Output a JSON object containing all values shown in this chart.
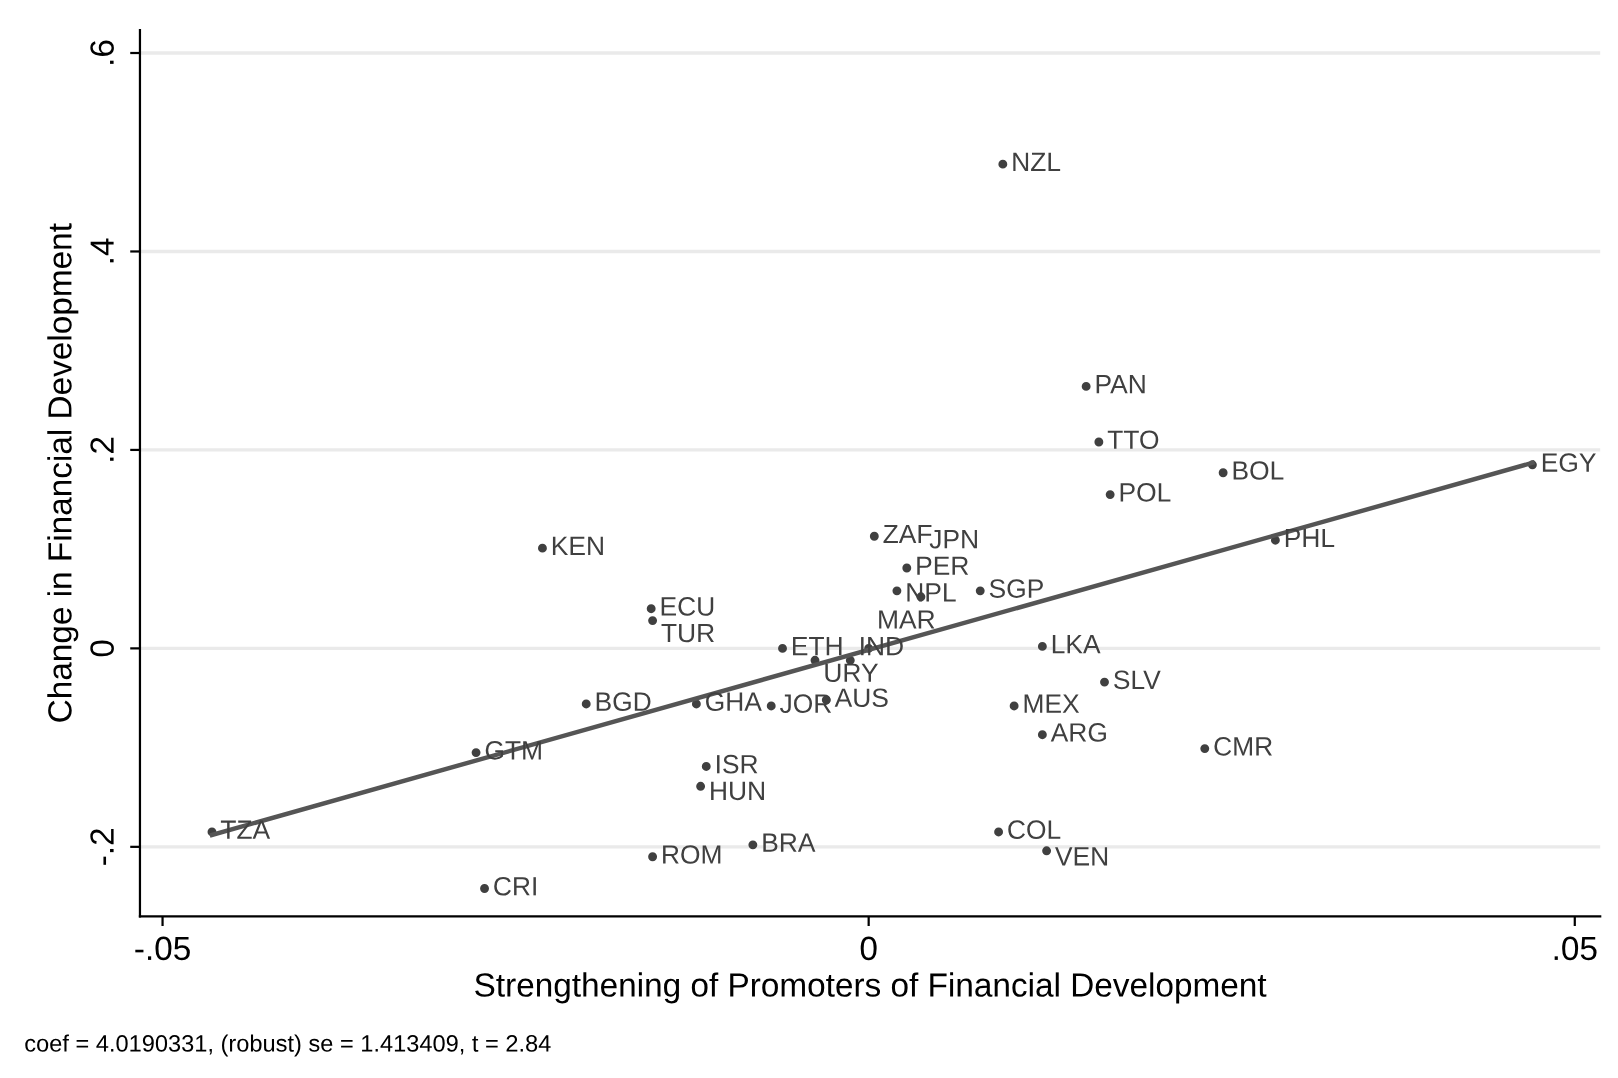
{
  "chart_data": {
    "type": "scatter",
    "xlabel": "Strengthening of Promoters of Financial Development",
    "ylabel": "Change in Financial Development",
    "annotations": [
      "coef = 4.0190331, (robust) se = 1.413409, t = 2.84"
    ],
    "xlim": [
      -0.0516,
      0.0518
    ],
    "xticks": [
      {
        "value": -0.05,
        "label": "-.05"
      },
      0,
      {
        "value": 0.05,
        "label": ".05"
      }
    ],
    "ylim": [
      -0.27,
      0.623
    ],
    "yticks": [
      {
        "value": -0.2,
        "label": "-.2"
      },
      0,
      {
        "value": 0.2,
        "label": ".2"
      },
      {
        "value": 0.4,
        "label": ".4"
      },
      {
        "value": 0.6,
        "label": ".6"
      }
    ],
    "grid": "y",
    "legend": false,
    "series": [
      {
        "color": "#404040",
        "marker": "circle",
        "x": [
          -0.0465,
          -0.0272,
          -0.0278,
          -0.02,
          -0.0231,
          -0.0154,
          -0.0153,
          -0.0122,
          -0.0115,
          -0.0119,
          -0.0153,
          -0.0082,
          -0.0069,
          -0.003,
          -0.0061,
          -0.0038,
          -0.0013,
          0.0,
          0.0123,
          0.0167,
          0.0103,
          0.0123,
          0.0238,
          0.0092,
          0.0126,
          0.0004,
          0.0027,
          0.002,
          0.0037,
          0.0079,
          0.0288,
          0.0154,
          0.0163,
          0.0171,
          0.0251,
          0.0095,
          0.047
        ],
        "values": [
          -0.185,
          -0.242,
          -0.105,
          -0.056,
          0.101,
          0.04,
          0.028,
          -0.056,
          -0.119,
          -0.139,
          -0.21,
          -0.198,
          -0.058,
          -0.052,
          0.0,
          -0.012,
          -0.012,
          0.0,
          0.002,
          -0.034,
          -0.058,
          -0.087,
          -0.101,
          -0.185,
          -0.204,
          0.113,
          0.081,
          0.058,
          0.052,
          0.058,
          0.109,
          0.264,
          0.208,
          0.155,
          0.177,
          0.488,
          0.185
        ],
        "value_labels": [
          "TZA",
          "CRI",
          "GTM",
          "BGD",
          "KEN",
          "ECU",
          "TUR",
          "GHA",
          "ISR",
          "HUN",
          "ROM",
          "BRA",
          "JOR",
          "AUS",
          "ETH",
          "URY",
          "IND",
          "MAR",
          "LKA",
          "SLV",
          "MEX",
          "ARG",
          "CMR",
          "COL",
          "VEN",
          "ZAF",
          "PER",
          "NPL",
          "JPN",
          "SGP",
          "PHL",
          "PAN",
          "TTO",
          "POL",
          "BOL",
          "NZL",
          "EGY"
        ]
      },
      {
        "type": "line",
        "color": "#555555",
        "x": [
          -0.0465,
          0.047
        ],
        "values": [
          -0.188,
          0.187
        ],
        "line_style": "solid"
      }
    ]
  }
}
